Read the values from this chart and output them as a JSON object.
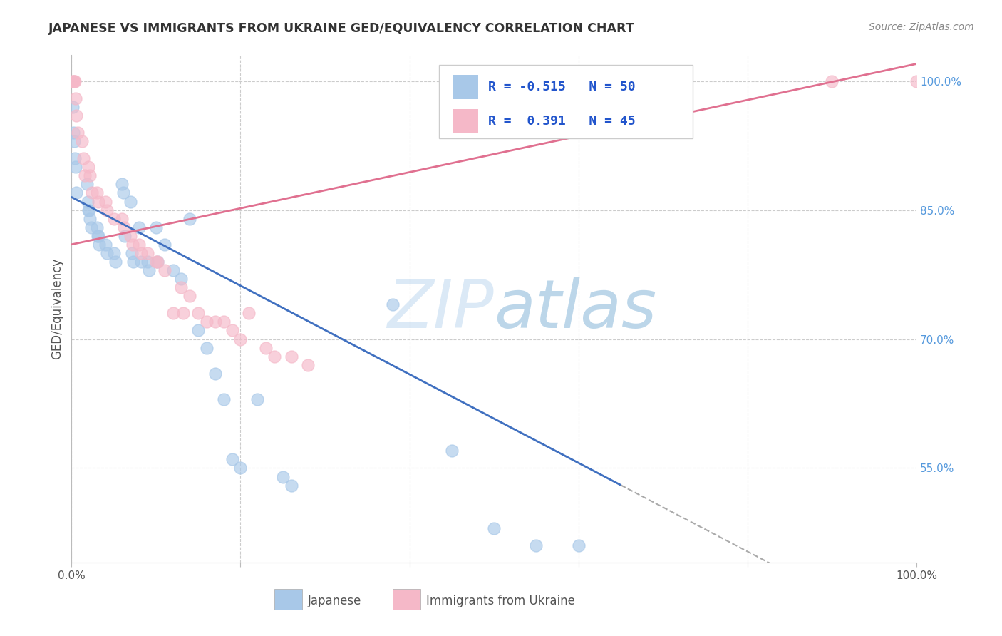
{
  "title": "JAPANESE VS IMMIGRANTS FROM UKRAINE GED/EQUIVALENCY CORRELATION CHART",
  "source": "Source: ZipAtlas.com",
  "ylabel": "GED/Equivalency",
  "xlim": [
    0.0,
    1.0
  ],
  "ylim": [
    0.44,
    1.03
  ],
  "y_tick_labels_right": [
    "100.0%",
    "85.0%",
    "70.0%",
    "55.0%"
  ],
  "y_tick_positions_right": [
    1.0,
    0.85,
    0.7,
    0.55
  ],
  "legend_label_blue": "Japanese",
  "legend_label_pink": "Immigrants from Ukraine",
  "blue_scatter_color": "#a8c8e8",
  "pink_scatter_color": "#f5b8c8",
  "blue_line_color": "#4070c0",
  "pink_line_color": "#e07090",
  "background_color": "#ffffff",
  "grid_color": "#cccccc",
  "japanese_x": [
    0.001,
    0.002,
    0.003,
    0.004,
    0.005,
    0.006,
    0.018,
    0.019,
    0.02,
    0.021,
    0.022,
    0.023,
    0.03,
    0.031,
    0.032,
    0.033,
    0.04,
    0.042,
    0.05,
    0.052,
    0.06,
    0.061,
    0.063,
    0.07,
    0.071,
    0.073,
    0.08,
    0.082,
    0.09,
    0.092,
    0.1,
    0.102,
    0.11,
    0.12,
    0.13,
    0.14,
    0.15,
    0.16,
    0.17,
    0.18,
    0.19,
    0.2,
    0.22,
    0.25,
    0.26,
    0.38,
    0.45,
    0.5,
    0.55,
    0.6
  ],
  "japanese_y": [
    0.97,
    0.94,
    0.93,
    0.91,
    0.9,
    0.87,
    0.88,
    0.86,
    0.85,
    0.85,
    0.84,
    0.83,
    0.83,
    0.82,
    0.82,
    0.81,
    0.81,
    0.8,
    0.8,
    0.79,
    0.88,
    0.87,
    0.82,
    0.86,
    0.8,
    0.79,
    0.83,
    0.79,
    0.79,
    0.78,
    0.83,
    0.79,
    0.81,
    0.78,
    0.77,
    0.84,
    0.71,
    0.69,
    0.66,
    0.63,
    0.56,
    0.55,
    0.63,
    0.54,
    0.53,
    0.74,
    0.57,
    0.48,
    0.46,
    0.46
  ],
  "ukraine_x": [
    0.001,
    0.002,
    0.003,
    0.004,
    0.005,
    0.006,
    0.007,
    0.012,
    0.014,
    0.016,
    0.02,
    0.022,
    0.024,
    0.03,
    0.032,
    0.04,
    0.042,
    0.05,
    0.06,
    0.062,
    0.07,
    0.072,
    0.08,
    0.082,
    0.09,
    0.1,
    0.102,
    0.11,
    0.12,
    0.13,
    0.132,
    0.14,
    0.15,
    0.16,
    0.17,
    0.18,
    0.19,
    0.2,
    0.21,
    0.23,
    0.24,
    0.26,
    0.28,
    0.9,
    1.0
  ],
  "ukraine_y": [
    1.0,
    1.0,
    1.0,
    1.0,
    0.98,
    0.96,
    0.94,
    0.93,
    0.91,
    0.89,
    0.9,
    0.89,
    0.87,
    0.87,
    0.86,
    0.86,
    0.85,
    0.84,
    0.84,
    0.83,
    0.82,
    0.81,
    0.81,
    0.8,
    0.8,
    0.79,
    0.79,
    0.78,
    0.73,
    0.76,
    0.73,
    0.75,
    0.73,
    0.72,
    0.72,
    0.72,
    0.71,
    0.7,
    0.73,
    0.69,
    0.68,
    0.68,
    0.67,
    1.0,
    1.0
  ]
}
